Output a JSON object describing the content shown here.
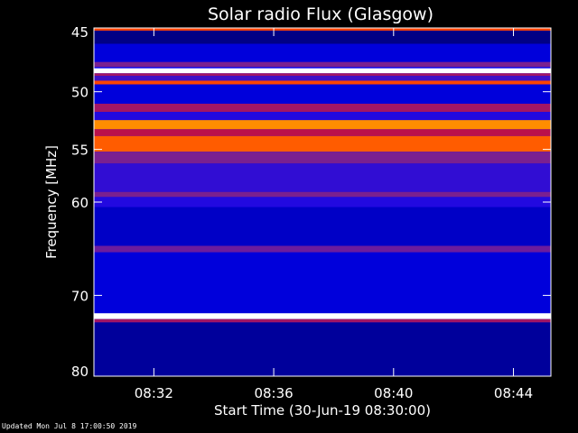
{
  "chart_data": {
    "type": "heatmap",
    "title": "Solar radio Flux (Glasgow)",
    "xlabel": "Start Time (30-Jun-19 08:30:00)",
    "ylabel": "Frequency [MHz]",
    "x_start": "08:30:00",
    "x_end": "08:45:15",
    "xlim_minutes": [
      0,
      15.25
    ],
    "ylim": [
      45,
      80
    ],
    "y_scale": "log",
    "x_ticks": [
      {
        "label": "08:32",
        "value": 2
      },
      {
        "label": "08:36",
        "value": 6
      },
      {
        "label": "08:40",
        "value": 10
      },
      {
        "label": "08:44",
        "value": 14
      }
    ],
    "y_ticks": [
      {
        "label": "45",
        "value": 45
      },
      {
        "label": "50",
        "value": 50
      },
      {
        "label": "55",
        "value": 55
      },
      {
        "label": "60",
        "value": 60
      },
      {
        "label": "70",
        "value": 70
      },
      {
        "label": "80",
        "value": 80
      }
    ],
    "background_level": 0.32,
    "frequency_bands": [
      {
        "f0": 45.0,
        "f1": 45.2,
        "level": 0.72
      },
      {
        "f0": 45.2,
        "f1": 46.2,
        "level": 0.22
      },
      {
        "f0": 46.2,
        "f1": 47.6,
        "level": 0.3
      },
      {
        "f0": 47.6,
        "f1": 48.0,
        "level": 0.5
      },
      {
        "f0": 48.1,
        "f1": 48.5,
        "level": 1.0
      },
      {
        "f0": 48.5,
        "f1": 48.7,
        "level": 0.55
      },
      {
        "f0": 48.7,
        "f1": 49.1,
        "level": 0.42
      },
      {
        "f0": 49.1,
        "f1": 49.4,
        "level": 0.72
      },
      {
        "f0": 49.4,
        "f1": 51.0,
        "level": 0.3
      },
      {
        "f0": 51.0,
        "f1": 51.7,
        "level": 0.55
      },
      {
        "f0": 51.7,
        "f1": 52.4,
        "level": 0.38
      },
      {
        "f0": 52.4,
        "f1": 53.2,
        "level": 0.78
      },
      {
        "f0": 53.2,
        "f1": 53.8,
        "level": 0.58
      },
      {
        "f0": 53.8,
        "f1": 55.2,
        "level": 0.74
      },
      {
        "f0": 55.2,
        "f1": 56.3,
        "level": 0.5
      },
      {
        "f0": 56.3,
        "f1": 59.0,
        "level": 0.4
      },
      {
        "f0": 59.0,
        "f1": 59.5,
        "level": 0.5
      },
      {
        "f0": 59.5,
        "f1": 60.5,
        "level": 0.38
      },
      {
        "f0": 60.5,
        "f1": 64.5,
        "level": 0.28
      },
      {
        "f0": 64.5,
        "f1": 65.2,
        "level": 0.48
      },
      {
        "f0": 65.2,
        "f1": 72.1,
        "level": 0.3
      },
      {
        "f0": 72.1,
        "f1": 72.8,
        "level": 1.0
      },
      {
        "f0": 72.8,
        "f1": 73.2,
        "level": 0.55
      },
      {
        "f0": 73.2,
        "f1": 80.0,
        "level": 0.24
      }
    ],
    "colors": {
      "background": "#000000",
      "plot_frame": "#ffffff",
      "ticks": "#ffffff",
      "colormap": [
        "#000000",
        "#00004c",
        "#0000ff",
        "#7a2090",
        "#ff0000",
        "#ffd000",
        "#ffffff"
      ]
    }
  },
  "footer": {
    "updated": "Updated Mon Jul  8 17:00:50 2019"
  }
}
